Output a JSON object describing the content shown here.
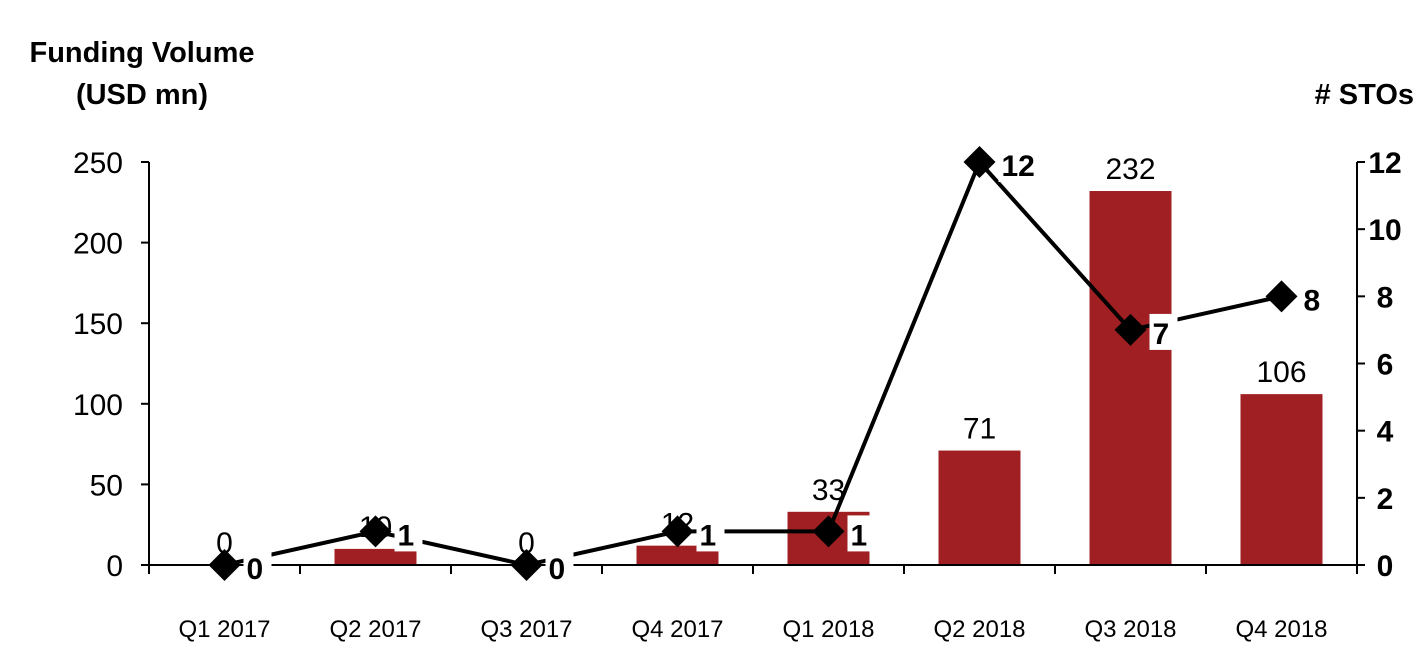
{
  "chart_data": {
    "type": "bar+line",
    "categories": [
      "Q1 2017",
      "Q2 2017",
      "Q3 2017",
      "Q4 2017",
      "Q1 2018",
      "Q2 2018",
      "Q3 2018",
      "Q4 2018"
    ],
    "series": [
      {
        "name": "Funding Volume",
        "type": "bar",
        "axis": "left",
        "color": "#A01F23",
        "values": [
          0,
          10,
          0,
          12,
          33,
          71,
          232,
          106
        ]
      },
      {
        "name": "# STOs",
        "type": "line",
        "axis": "right",
        "color": "#000000",
        "marker": "diamond",
        "values": [
          0,
          1,
          0,
          1,
          1,
          12,
          7,
          8
        ]
      }
    ],
    "ylabel_left": [
      "Funding Volume",
      "(USD mn)"
    ],
    "ylabel_right": "# STOs",
    "ylim_left": [
      0,
      250
    ],
    "yticks_left": [
      0,
      50,
      100,
      150,
      200,
      250
    ],
    "ylim_right": [
      0,
      12
    ],
    "yticks_right": [
      0,
      2,
      4,
      6,
      8,
      10,
      12
    ],
    "grid": false
  }
}
